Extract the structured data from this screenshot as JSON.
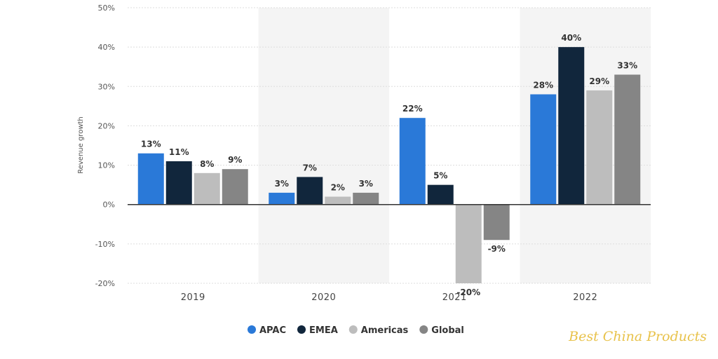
{
  "chart_data": {
    "type": "bar",
    "categories": [
      "2019",
      "2020",
      "2021",
      "2022"
    ],
    "series": [
      {
        "name": "APAC",
        "color": "#2a79d8",
        "values": [
          13,
          3,
          22,
          28
        ],
        "labels": [
          "13%",
          "3%",
          "22%",
          "28%"
        ]
      },
      {
        "name": "EMEA",
        "color": "#11263c",
        "values": [
          11,
          7,
          5,
          40
        ],
        "labels": [
          "11%",
          "7%",
          "5%",
          "40%"
        ]
      },
      {
        "name": "Americas",
        "color": "#bdbdbd",
        "values": [
          8,
          2,
          -20,
          29
        ],
        "labels": [
          "8%",
          "2%",
          "-20%",
          "29%"
        ]
      },
      {
        "name": "Global",
        "color": "#858585",
        "values": [
          9,
          3,
          -9,
          33
        ],
        "labels": [
          "9%",
          "3%",
          "-9%",
          "33%"
        ]
      }
    ],
    "ylabel": "Revenue growth",
    "ylim": [
      -20,
      50
    ],
    "yticks": [
      50,
      40,
      30,
      20,
      10,
      0,
      -10,
      -20
    ],
    "ytick_labels": [
      "50%",
      "40%",
      "30%",
      "20%",
      "10%",
      "0%",
      "-10%",
      "-20%"
    ],
    "grid": true,
    "legend_position": "bottom-center"
  },
  "watermark": "Best China Products"
}
